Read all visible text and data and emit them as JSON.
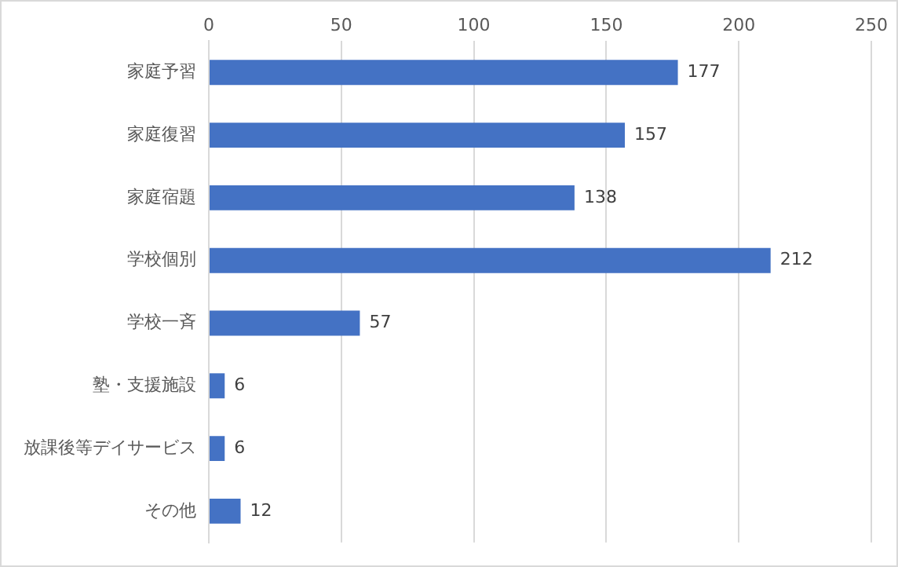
{
  "chart_data": {
    "type": "bar",
    "orientation": "horizontal",
    "categories": [
      "家庭予習",
      "家庭復習",
      "家庭宿題",
      "学校個別",
      "学校一斉",
      "塾・支援施設",
      "放課後等デイサービス",
      "その他"
    ],
    "values": [
      177,
      157,
      138,
      212,
      57,
      6,
      6,
      12
    ],
    "color": "#4472c4",
    "xlim": [
      0,
      250
    ],
    "xticks": [
      0,
      50,
      100,
      150,
      200,
      250
    ],
    "grid": "x",
    "data_labels": true
  }
}
